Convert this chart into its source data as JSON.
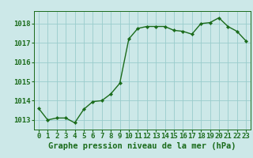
{
  "x": [
    0,
    1,
    2,
    3,
    4,
    5,
    6,
    7,
    8,
    9,
    10,
    11,
    12,
    13,
    14,
    15,
    16,
    17,
    18,
    19,
    20,
    21,
    22,
    23
  ],
  "y": [
    1013.6,
    1013.0,
    1013.1,
    1013.1,
    1012.85,
    1013.55,
    1013.95,
    1014.0,
    1014.35,
    1014.9,
    1017.2,
    1017.75,
    1017.85,
    1017.85,
    1017.85,
    1017.65,
    1017.6,
    1017.45,
    1018.0,
    1018.05,
    1018.3,
    1017.85,
    1017.6,
    1017.1
  ],
  "line_color": "#1a6b1a",
  "marker": "D",
  "marker_size": 2.2,
  "line_width": 1.0,
  "bg_color": "#cce8e8",
  "grid_color": "#99cccc",
  "ylabel_ticks": [
    1013,
    1014,
    1015,
    1016,
    1017,
    1018
  ],
  "xlim": [
    -0.5,
    23.5
  ],
  "ylim": [
    1012.5,
    1018.65
  ],
  "xlabel": "Graphe pression niveau de la mer (hPa)",
  "xlabel_fontsize": 7.5,
  "tick_fontsize": 6.5,
  "tick_color": "#1a6b1a",
  "label_color": "#1a6b1a"
}
